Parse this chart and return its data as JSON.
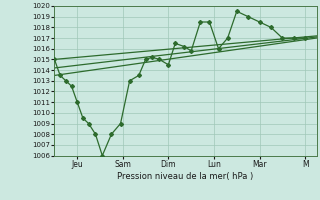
{
  "title": "",
  "xlabel": "Pression niveau de la mer( hPa )",
  "bg_color": "#cce8e0",
  "grid_color": "#a0c8b8",
  "line_color": "#2d6b2d",
  "spine_color": "#4a7a4a",
  "ylim": [
    1006,
    1020
  ],
  "yticks": [
    1006,
    1007,
    1008,
    1009,
    1010,
    1011,
    1012,
    1013,
    1014,
    1015,
    1016,
    1017,
    1018,
    1019,
    1020
  ],
  "xlim": [
    0,
    11.5
  ],
  "x_tick_positions": [
    1,
    3,
    5,
    7,
    9,
    11
  ],
  "x_tick_labels": [
    "Jeu",
    "Sam",
    "Dim",
    "Lun",
    "Mar",
    "M"
  ],
  "wavy_x": [
    0,
    0.25,
    0.5,
    0.75,
    1.0,
    1.25,
    1.5,
    1.8,
    2.1,
    2.5,
    2.9,
    3.3,
    3.7,
    4.0,
    4.3,
    4.6,
    5.0,
    5.3,
    5.7,
    6.0,
    6.4,
    6.8,
    7.2,
    7.6,
    8.0,
    8.5,
    9.0,
    9.5,
    10.0,
    10.5,
    11.0
  ],
  "wavy_y": [
    1015,
    1013.5,
    1013,
    1012.5,
    1011,
    1009.5,
    1009,
    1008,
    1006,
    1008,
    1009,
    1013,
    1013.5,
    1015,
    1015.2,
    1015,
    1014.5,
    1016.5,
    1016.2,
    1015.8,
    1018.5,
    1018.5,
    1016,
    1017,
    1019.5,
    1019,
    1018.5,
    1018,
    1017,
    1017,
    1017
  ],
  "trend1_x": [
    0,
    11.5
  ],
  "trend1_y": [
    1015.0,
    1017.2
  ],
  "trend2_x": [
    0,
    11.5
  ],
  "trend2_y": [
    1013.5,
    1017.0
  ],
  "trend3_x": [
    0,
    11.5
  ],
  "trend3_y": [
    1014.2,
    1017.1
  ]
}
